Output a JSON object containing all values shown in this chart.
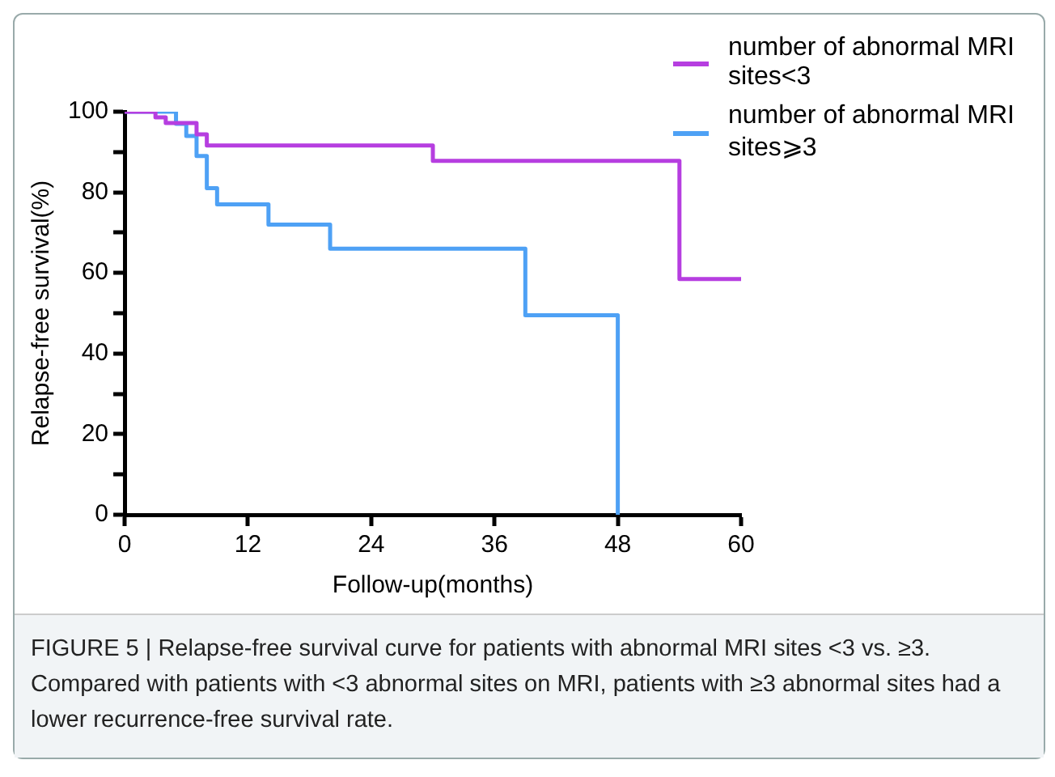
{
  "chart_data": {
    "type": "step",
    "xlabel": "Follow-up(months)",
    "ylabel": "Relapse-free survival(%)",
    "xlim": [
      0,
      60
    ],
    "xticks": [
      0,
      12,
      24,
      36,
      48,
      60
    ],
    "ylim": [
      0,
      100
    ],
    "yticks": [
      0,
      {
        "value": 10,
        "label": null
      },
      20,
      {
        "value": 30,
        "label": null
      },
      40,
      {
        "value": 50,
        "label": null
      },
      60,
      {
        "value": 70,
        "label": null
      },
      80,
      {
        "value": 90,
        "label": null
      },
      100
    ],
    "grid": false,
    "legend": "top right",
    "line_style": "solid",
    "series": [
      {
        "name": "number of abnormal MRI sites<3",
        "color": "#b63ee0",
        "x": [
          0,
          3,
          4,
          7,
          8,
          30,
          54,
          60
        ],
        "values": [
          100,
          98.6,
          97.2,
          94.4,
          91.6,
          87.8,
          58.5,
          58.5
        ]
      },
      {
        "name": "number of abnormal MRI sites⩾3",
        "color": "#4ea1f5",
        "x": [
          0,
          5,
          6,
          7,
          8,
          9,
          14,
          20,
          39,
          48
        ],
        "values": [
          100,
          97,
          94,
          89,
          81,
          77,
          72,
          66,
          49.5,
          0
        ]
      }
    ],
    "annotations": [
      "FIGURE 5 | Relapse-free survival curve for patients with abnormal MRI sites <3 vs. ≥3. Compared with patients with <3 abnormal sites on MRI, patients with ≥3 abnormal sites had a lower recurrence-free survival rate."
    ]
  }
}
